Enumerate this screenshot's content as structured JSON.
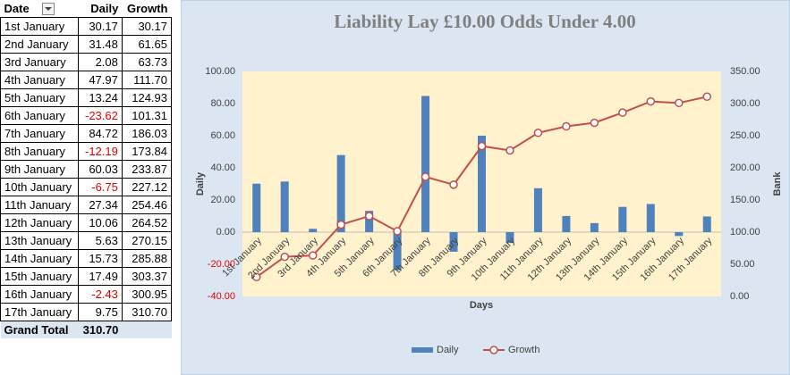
{
  "table": {
    "header": [
      "Date",
      "Daily",
      "Growth"
    ],
    "rows": [
      [
        "1st January",
        "30.17",
        "30.17"
      ],
      [
        "2nd January",
        "31.48",
        "61.65"
      ],
      [
        "3rd January",
        "2.08",
        "63.73"
      ],
      [
        "4th January",
        "47.97",
        "111.70"
      ],
      [
        "5th January",
        "13.24",
        "124.93"
      ],
      [
        "6th January",
        "-23.62",
        "101.31"
      ],
      [
        "7th January",
        "84.72",
        "186.03"
      ],
      [
        "8th January",
        "-12.19",
        "173.84"
      ],
      [
        "9th January",
        "60.03",
        "233.87"
      ],
      [
        "10th January",
        "-6.75",
        "227.12"
      ],
      [
        "11th January",
        "27.34",
        "254.46"
      ],
      [
        "12th January",
        "10.06",
        "264.52"
      ],
      [
        "13th January",
        "5.63",
        "270.15"
      ],
      [
        "14th January",
        "15.73",
        "285.88"
      ],
      [
        "15th January",
        "17.49",
        "303.37"
      ],
      [
        "16th January",
        "-2.43",
        "300.95"
      ],
      [
        "17th January",
        "9.75",
        "310.70"
      ]
    ],
    "total": [
      "Grand Total",
      "310.70"
    ]
  },
  "chart_data": {
    "type": "combo",
    "title": "Liability Lay £10.00 Odds Under 4.00",
    "x_label": "Days",
    "y_label": "Daily",
    "y2_label": "Bank",
    "categories": [
      "1st January",
      "2nd January",
      "3rd January",
      "4th January",
      "5th January",
      "6th January",
      "7th January",
      "8th January",
      "9th January",
      "10th January",
      "11th January",
      "12th January",
      "13th January",
      "14th January",
      "15th January",
      "16th January",
      "17th January"
    ],
    "series": [
      {
        "name": "Daily",
        "type": "bar",
        "color": "#4f81bd",
        "values": [
          30.17,
          31.48,
          2.08,
          47.97,
          13.24,
          -23.62,
          84.72,
          -12.19,
          60.03,
          -6.75,
          27.34,
          10.06,
          5.63,
          15.73,
          17.49,
          -2.43,
          9.75
        ]
      },
      {
        "name": "Growth",
        "type": "line",
        "axis": "y2",
        "color": "#c0504d",
        "values": [
          30.17,
          61.65,
          63.73,
          111.7,
          124.93,
          101.31,
          186.03,
          173.84,
          233.87,
          227.12,
          254.46,
          264.52,
          270.15,
          285.88,
          303.37,
          300.95,
          310.7
        ]
      }
    ],
    "ylim": [
      -40,
      100
    ],
    "yticks": [
      {
        "value": -40,
        "label": "-40.00"
      },
      {
        "value": -20,
        "label": "-20.00"
      },
      {
        "value": 0,
        "label": "0.00"
      },
      {
        "value": 20,
        "label": "20.00"
      },
      {
        "value": 40,
        "label": "40.00"
      },
      {
        "value": 60,
        "label": "60.00"
      },
      {
        "value": 80,
        "label": "80.00"
      },
      {
        "value": 100,
        "label": "100.00"
      }
    ],
    "y2lim": [
      0,
      350
    ],
    "y2ticks": [
      {
        "value": 0,
        "label": "0.00"
      },
      {
        "value": 50,
        "label": "50.00"
      },
      {
        "value": 100,
        "label": "100.00"
      },
      {
        "value": 150,
        "label": "150.00"
      },
      {
        "value": 200,
        "label": "200.00"
      },
      {
        "value": 250,
        "label": "250.00"
      },
      {
        "value": 300,
        "label": "300.00"
      },
      {
        "value": 350,
        "label": "350.00"
      }
    ],
    "grid": false,
    "legend": "bottom"
  }
}
